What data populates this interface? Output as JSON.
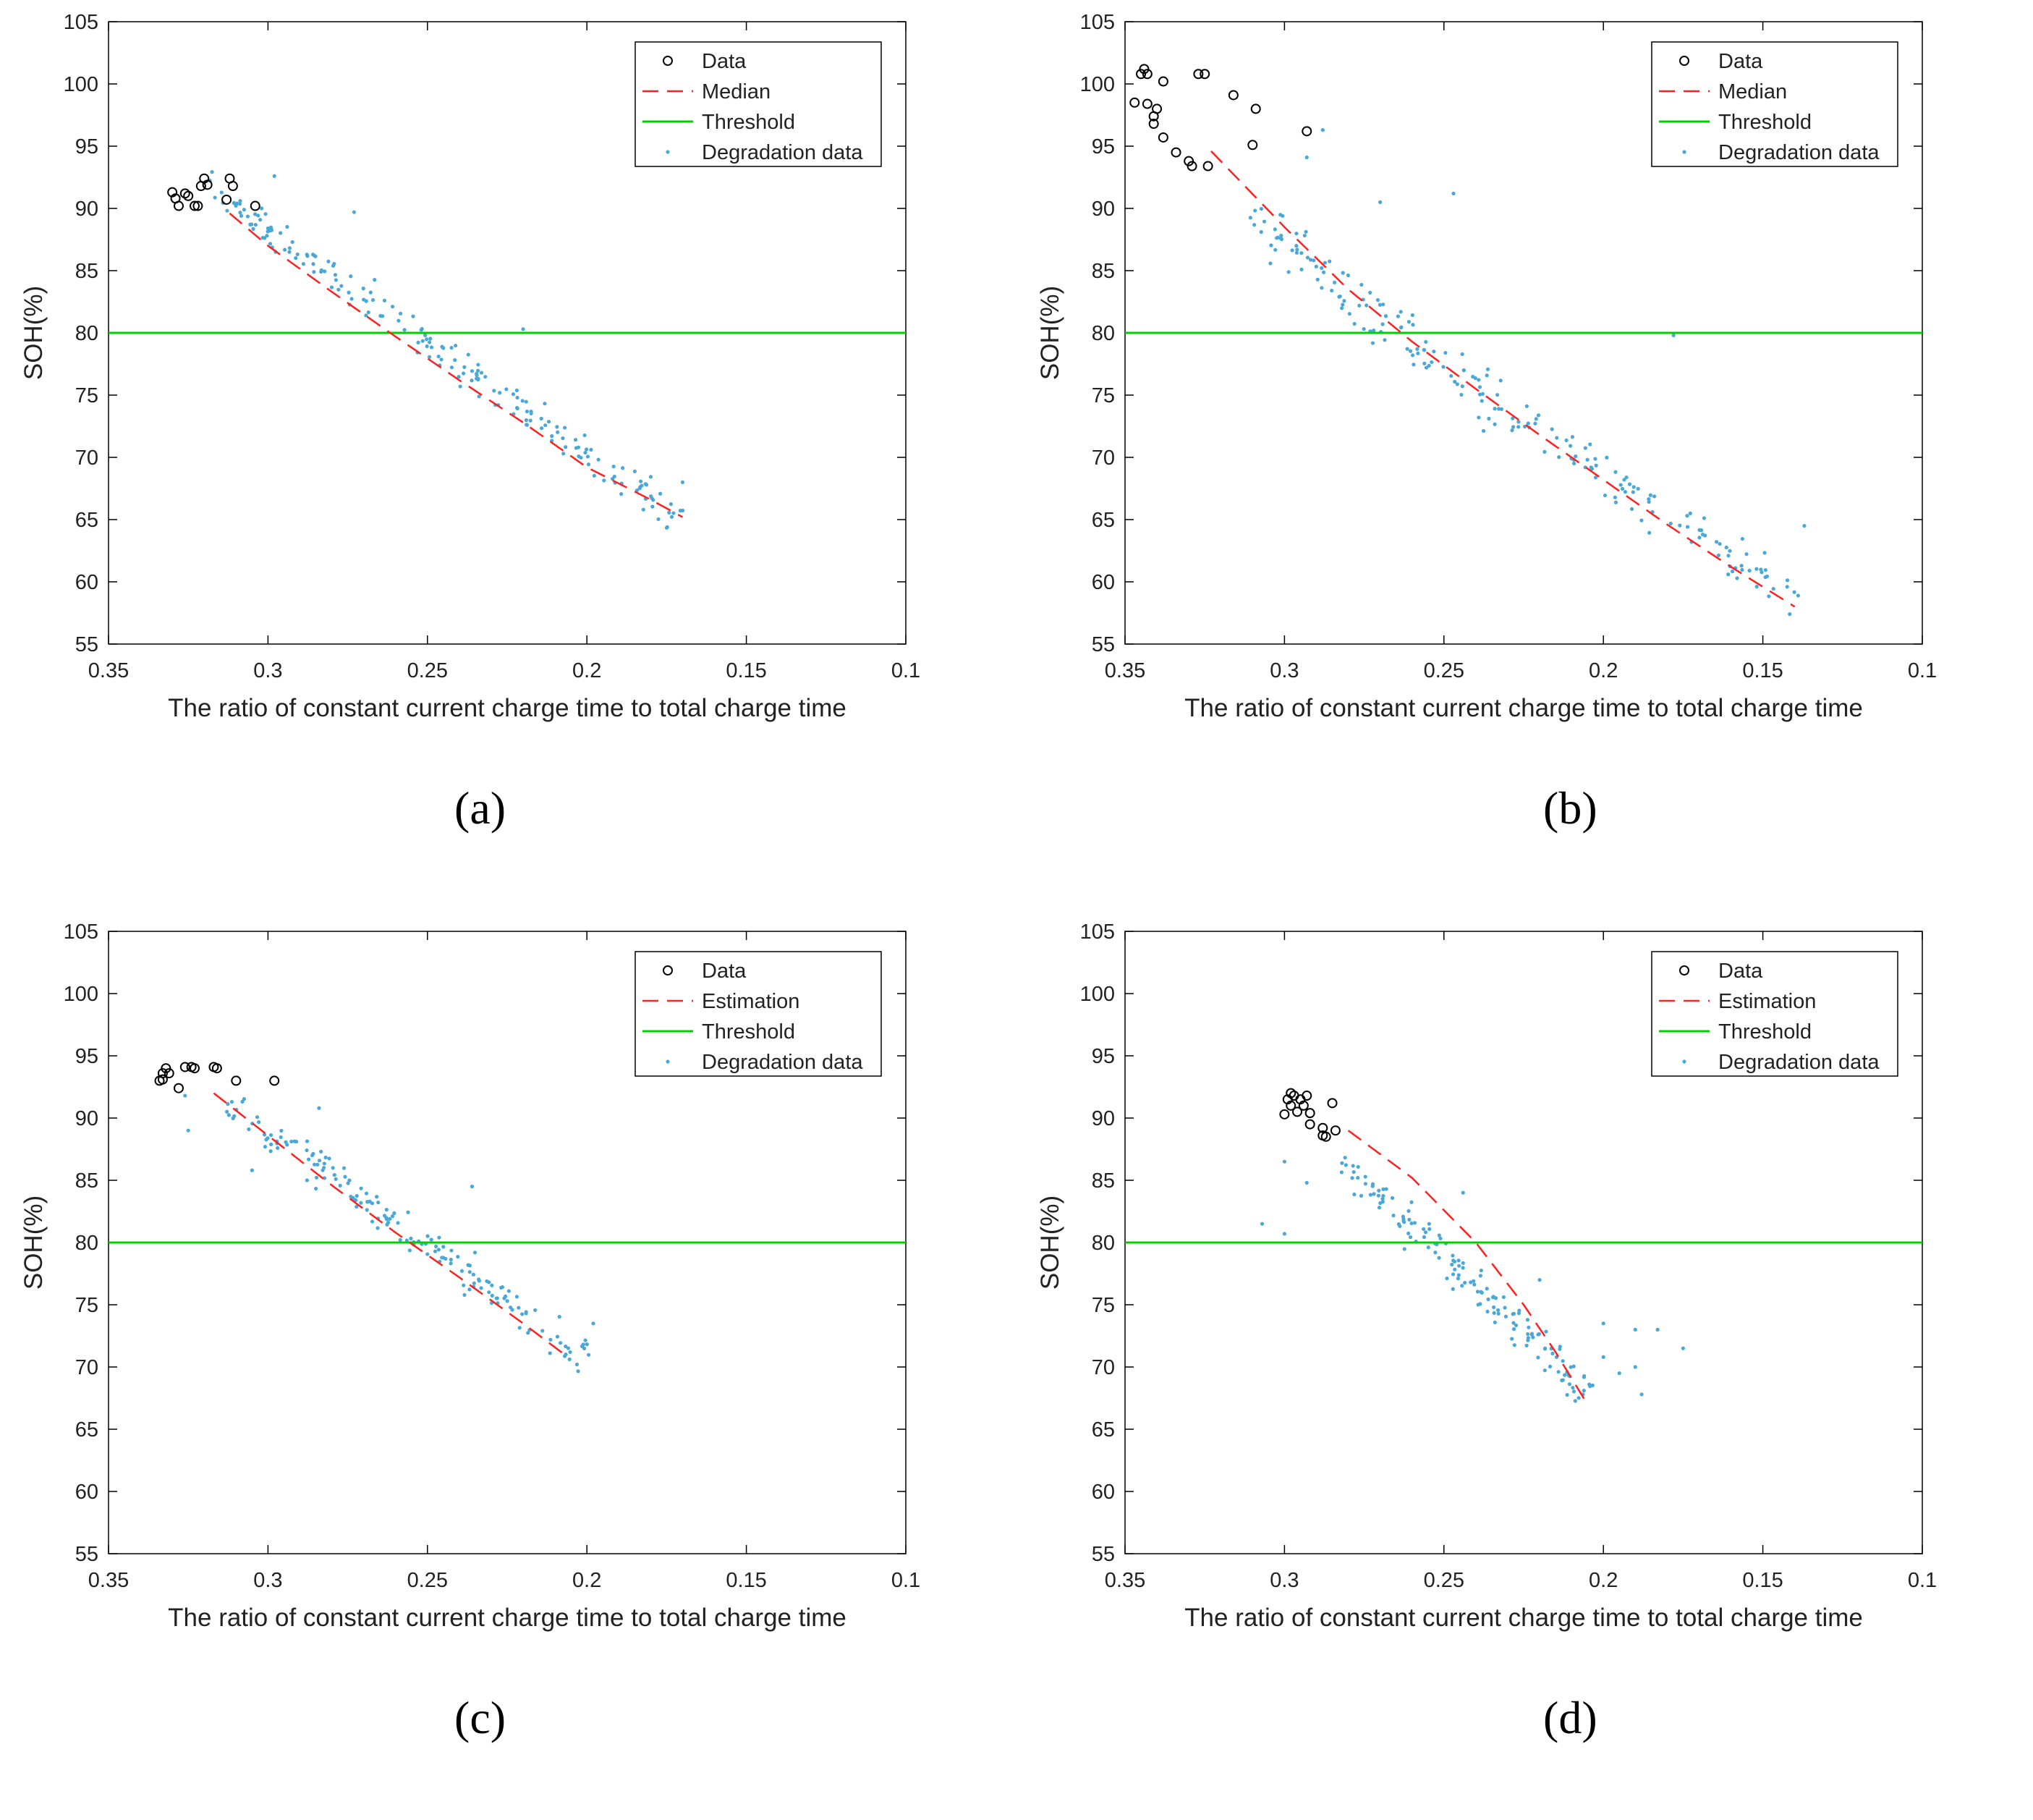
{
  "figure": {
    "panels": [
      "(a)",
      "(b)",
      "(c)",
      "(d)"
    ]
  },
  "chart_data": [
    {
      "id": "a",
      "panel_label": "(a)",
      "type": "scatter",
      "xlabel": "The ratio of constant current charge time to total charge time",
      "ylabel": "SOH(%)",
      "xlim": [
        0.35,
        0.1
      ],
      "ylim": [
        55,
        105
      ],
      "xticks": [
        "0.35",
        "0.3",
        "0.25",
        "0.2",
        "0.15",
        "0.1"
      ],
      "yticks": [
        "55",
        "60",
        "65",
        "70",
        "75",
        "80",
        "85",
        "90",
        "95",
        "100",
        "105"
      ],
      "legend": [
        "Data",
        "Median",
        "Threshold",
        "Degradation data"
      ],
      "legend_position": "top-right",
      "threshold": 80,
      "colors": {
        "data": "#000000",
        "fit": "#ff2020",
        "threshold": "#00d000",
        "degradation": "#4aa8d8"
      },
      "series": {
        "data": [
          [
            0.33,
            91.3
          ],
          [
            0.329,
            90.8
          ],
          [
            0.328,
            90.2
          ],
          [
            0.326,
            91.2
          ],
          [
            0.325,
            91.0
          ],
          [
            0.323,
            90.2
          ],
          [
            0.322,
            90.2
          ],
          [
            0.321,
            91.8
          ],
          [
            0.32,
            92.4
          ],
          [
            0.319,
            91.9
          ],
          [
            0.313,
            90.7
          ],
          [
            0.312,
            92.4
          ],
          [
            0.311,
            91.8
          ],
          [
            0.304,
            90.2
          ]
        ],
        "fit": [
          [
            0.312,
            89.6
          ],
          [
            0.3,
            87.0
          ],
          [
            0.28,
            83.3
          ],
          [
            0.26,
            79.7
          ],
          [
            0.24,
            76.2
          ],
          [
            0.22,
            72.8
          ],
          [
            0.2,
            69.2
          ],
          [
            0.18,
            66.6
          ],
          [
            0.17,
            65.2
          ]
        ],
        "degradation_band": {
          "x_start": 0.318,
          "x_end": 0.172,
          "y_start": 91.5,
          "y_end": 65.2,
          "spread": 1.6,
          "count": 200
        },
        "degradation_outliers": [
          [
            0.298,
            92.6
          ],
          [
            0.273,
            89.7
          ],
          [
            0.22,
            80.3
          ],
          [
            0.17,
            68.0
          ],
          [
            0.302,
            90.0
          ],
          [
            0.3,
            88.4
          ]
        ]
      }
    },
    {
      "id": "b",
      "panel_label": "(b)",
      "type": "scatter",
      "xlabel": "The ratio of constant current charge time to total charge time",
      "ylabel": "SOH(%)",
      "xlim": [
        0.35,
        0.1
      ],
      "ylim": [
        55,
        105
      ],
      "xticks": [
        "0.35",
        "0.3",
        "0.25",
        "0.2",
        "0.15",
        "0.1"
      ],
      "yticks": [
        "55",
        "60",
        "65",
        "70",
        "75",
        "80",
        "85",
        "90",
        "95",
        "100",
        "105"
      ],
      "legend": [
        "Data",
        "Median",
        "Threshold",
        "Degradation data"
      ],
      "legend_position": "top-right",
      "threshold": 80,
      "colors": {
        "data": "#000000",
        "fit": "#ff2020",
        "threshold": "#00d000",
        "degradation": "#4aa8d8"
      },
      "series": {
        "data": [
          [
            0.347,
            98.5
          ],
          [
            0.345,
            100.8
          ],
          [
            0.344,
            101.2
          ],
          [
            0.343,
            100.8
          ],
          [
            0.343,
            98.4
          ],
          [
            0.341,
            96.8
          ],
          [
            0.341,
            97.4
          ],
          [
            0.34,
            98.0
          ],
          [
            0.338,
            100.2
          ],
          [
            0.338,
            95.7
          ],
          [
            0.334,
            94.5
          ],
          [
            0.33,
            93.8
          ],
          [
            0.329,
            93.4
          ],
          [
            0.327,
            100.8
          ],
          [
            0.325,
            100.8
          ],
          [
            0.324,
            93.4
          ],
          [
            0.316,
            99.1
          ],
          [
            0.31,
            95.1
          ],
          [
            0.309,
            98.0
          ],
          [
            0.293,
            96.2
          ]
        ],
        "fit": [
          [
            0.323,
            94.6
          ],
          [
            0.3,
            88.5
          ],
          [
            0.28,
            83.5
          ],
          [
            0.26,
            79.3
          ],
          [
            0.24,
            75.5
          ],
          [
            0.22,
            71.8
          ],
          [
            0.2,
            68.2
          ],
          [
            0.18,
            64.6
          ],
          [
            0.16,
            61.2
          ],
          [
            0.14,
            58.0
          ]
        ],
        "degradation_band": {
          "x_start": 0.31,
          "x_end": 0.14,
          "y_start": 90.0,
          "y_end": 59.0,
          "spread": 2.5,
          "count": 210
        },
        "degradation_outliers": [
          [
            0.247,
            91.2
          ],
          [
            0.288,
            96.3
          ],
          [
            0.293,
            94.1
          ],
          [
            0.137,
            64.5
          ],
          [
            0.178,
            79.8
          ],
          [
            0.27,
            90.5
          ]
        ]
      }
    },
    {
      "id": "c",
      "panel_label": "(c)",
      "type": "scatter",
      "xlabel": "The ratio of constant current charge time to total charge time",
      "ylabel": "SOH(%)",
      "xlim": [
        0.35,
        0.1
      ],
      "ylim": [
        55,
        105
      ],
      "xticks": [
        "0.35",
        "0.3",
        "0.25",
        "0.2",
        "0.15",
        "0.1"
      ],
      "yticks": [
        "55",
        "60",
        "65",
        "70",
        "75",
        "80",
        "85",
        "90",
        "95",
        "100",
        "105"
      ],
      "legend": [
        "Data",
        "Estimation",
        "Threshold",
        "Degradation data"
      ],
      "legend_position": "top-right",
      "threshold": 80,
      "colors": {
        "data": "#000000",
        "fit": "#ff2020",
        "threshold": "#00d000",
        "degradation": "#4aa8d8"
      },
      "series": {
        "data": [
          [
            0.334,
            93.0
          ],
          [
            0.333,
            93.1
          ],
          [
            0.333,
            93.6
          ],
          [
            0.332,
            94.0
          ],
          [
            0.331,
            93.6
          ],
          [
            0.328,
            92.4
          ],
          [
            0.326,
            94.1
          ],
          [
            0.324,
            94.1
          ],
          [
            0.323,
            94.0
          ],
          [
            0.317,
            94.1
          ],
          [
            0.316,
            94.0
          ],
          [
            0.31,
            93.0
          ],
          [
            0.298,
            93.0
          ]
        ],
        "fit": [
          [
            0.317,
            92.0
          ],
          [
            0.3,
            88.6
          ],
          [
            0.28,
            84.6
          ],
          [
            0.26,
            80.8
          ],
          [
            0.24,
            77.2
          ],
          [
            0.22,
            73.5
          ],
          [
            0.207,
            71.0
          ]
        ],
        "degradation_band": {
          "x_start": 0.315,
          "x_end": 0.2,
          "y_start": 91.5,
          "y_end": 70.8,
          "spread": 1.8,
          "count": 170
        },
        "degradation_outliers": [
          [
            0.236,
            84.5
          ],
          [
            0.325,
            89.0
          ],
          [
            0.305,
            85.8
          ],
          [
            0.198,
            73.5
          ],
          [
            0.326,
            91.8
          ],
          [
            0.284,
            90.8
          ]
        ]
      }
    },
    {
      "id": "d",
      "panel_label": "(d)",
      "type": "scatter",
      "xlabel": "The ratio of constant current charge time to total charge time",
      "ylabel": "SOH(%)",
      "xlim": [
        0.35,
        0.1
      ],
      "ylim": [
        55,
        105
      ],
      "xticks": [
        "0.35",
        "0.3",
        "0.25",
        "0.2",
        "0.15",
        "0.1"
      ],
      "yticks": [
        "55",
        "60",
        "65",
        "70",
        "75",
        "80",
        "85",
        "90",
        "95",
        "100",
        "105"
      ],
      "legend": [
        "Data",
        "Estimation",
        "Threshold",
        "Degradation data"
      ],
      "legend_position": "top-right",
      "threshold": 80,
      "colors": {
        "data": "#000000",
        "fit": "#ff2020",
        "threshold": "#00d000",
        "degradation": "#4aa8d8"
      },
      "series": {
        "data": [
          [
            0.3,
            90.3
          ],
          [
            0.299,
            91.5
          ],
          [
            0.298,
            92.0
          ],
          [
            0.298,
            91.0
          ],
          [
            0.297,
            91.8
          ],
          [
            0.296,
            90.5
          ],
          [
            0.295,
            91.5
          ],
          [
            0.294,
            91.0
          ],
          [
            0.293,
            91.8
          ],
          [
            0.292,
            89.5
          ],
          [
            0.292,
            90.4
          ],
          [
            0.288,
            88.6
          ],
          [
            0.288,
            89.2
          ],
          [
            0.287,
            88.5
          ],
          [
            0.285,
            91.2
          ],
          [
            0.284,
            89.0
          ]
        ],
        "fit": [
          [
            0.28,
            89.0
          ],
          [
            0.26,
            85.2
          ],
          [
            0.24,
            80.0
          ],
          [
            0.225,
            75.0
          ],
          [
            0.215,
            71.2
          ],
          [
            0.205,
            67.0
          ]
        ],
        "degradation_band": {
          "x_start": 0.28,
          "x_end": 0.205,
          "y_start": 86.0,
          "y_end": 68.0,
          "spread": 2.0,
          "count": 150
        },
        "degradation_outliers": [
          [
            0.307,
            81.5
          ],
          [
            0.3,
            86.5
          ],
          [
            0.3,
            80.7
          ],
          [
            0.293,
            84.8
          ],
          [
            0.244,
            84.0
          ],
          [
            0.22,
            77.0
          ],
          [
            0.2,
            73.5
          ],
          [
            0.19,
            73.0
          ],
          [
            0.183,
            73.0
          ],
          [
            0.175,
            71.5
          ],
          [
            0.19,
            70.0
          ],
          [
            0.188,
            67.8
          ],
          [
            0.2,
            70.8
          ],
          [
            0.195,
            69.5
          ]
        ]
      }
    }
  ]
}
